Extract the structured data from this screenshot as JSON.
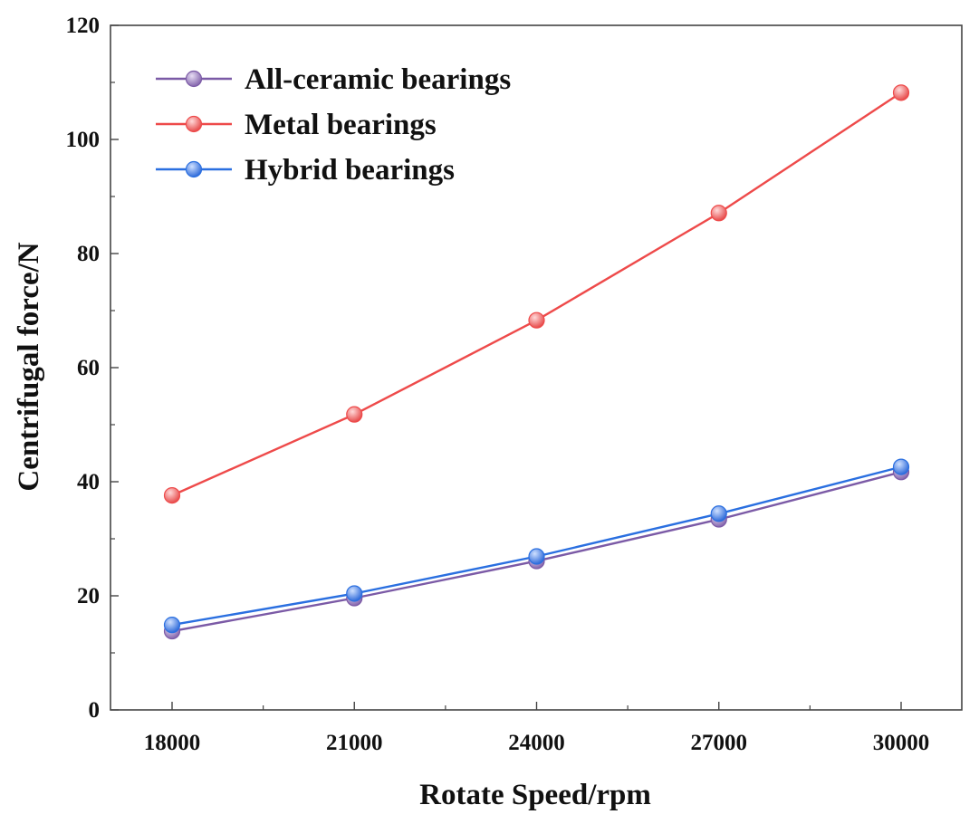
{
  "chart_data": {
    "type": "line",
    "xlabel": "Rotate Speed/rpm",
    "ylabel": "Centrifugal force/N",
    "x": [
      18000,
      21000,
      24000,
      27000,
      30000
    ],
    "x_ticks": [
      "18000",
      "21000",
      "24000",
      "27000",
      "30000"
    ],
    "ylim": [
      0,
      120
    ],
    "y_ticks": [
      "0",
      "20",
      "40",
      "60",
      "80",
      "100",
      "120"
    ],
    "grid": false,
    "legend_position": "top-left",
    "series": [
      {
        "name": "All-ceramic bearings",
        "color": "#7b5aa6",
        "values": [
          13.8,
          19.6,
          26.1,
          33.4,
          41.7
        ]
      },
      {
        "name": "Metal bearings",
        "color": "#ee4a4a",
        "values": [
          37.6,
          51.8,
          68.3,
          87.1,
          108.2
        ]
      },
      {
        "name": "Hybrid bearings",
        "color": "#2a6fe0",
        "values": [
          14.9,
          20.4,
          26.9,
          34.4,
          42.6
        ]
      }
    ]
  }
}
